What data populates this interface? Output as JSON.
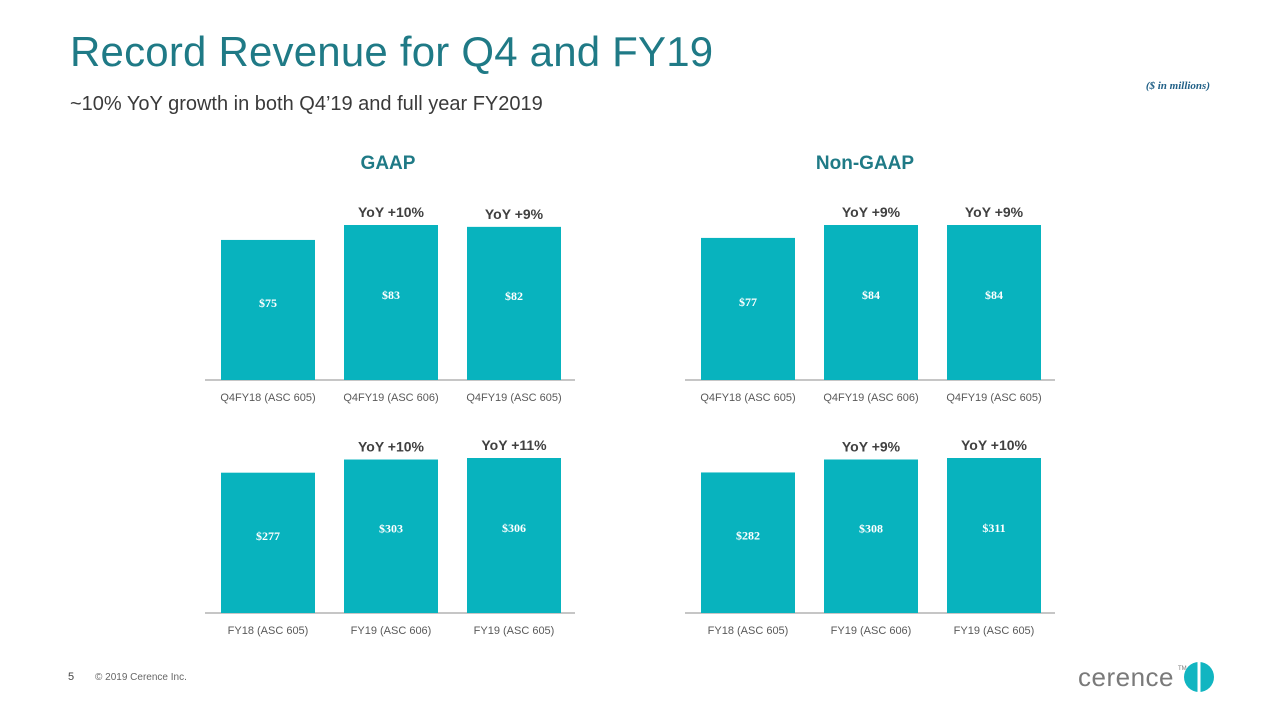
{
  "slide": {
    "title": "Record Revenue for Q4 and FY19",
    "subtitle": "~10% YoY growth in both Q4’19 and full year FY2019",
    "units_note": "($ in millions)",
    "gaap_title": "GAAP",
    "nongaap_title": "Non-GAAP",
    "page_number": "5",
    "copyright": "© 2019 Cerence Inc.",
    "logo_text": "cerence",
    "logo_tm": "TM"
  },
  "colors": {
    "bar": "#08b3be",
    "title": "#1f7a86",
    "axis": "#8c8c8c",
    "label": "#595959"
  },
  "chart_data": [
    {
      "type": "bar",
      "group": "GAAP",
      "categories": [
        "Q4FY18 (ASC 605)",
        "Q4FY19 (ASC 606)",
        "Q4FY19 (ASC 605)"
      ],
      "values": [
        75,
        83,
        82
      ],
      "data_labels": [
        "$75",
        "$83",
        "$82"
      ],
      "annotations": [
        "",
        "YoY +10%",
        "YoY +9%"
      ]
    },
    {
      "type": "bar",
      "group": "Non-GAAP",
      "categories": [
        "Q4FY18 (ASC 605)",
        "Q4FY19 (ASC 606)",
        "Q4FY19 (ASC 605)"
      ],
      "values": [
        77,
        84,
        84
      ],
      "data_labels": [
        "$77",
        "$84",
        "$84"
      ],
      "annotations": [
        "",
        "YoY +9%",
        "YoY +9%"
      ]
    },
    {
      "type": "bar",
      "group": "GAAP",
      "categories": [
        "FY18 (ASC 605)",
        "FY19 (ASC 606)",
        "FY19 (ASC 605)"
      ],
      "values": [
        277,
        303,
        306
      ],
      "data_labels": [
        "$277",
        "$303",
        "$306"
      ],
      "annotations": [
        "",
        "YoY +10%",
        "YoY +11%"
      ]
    },
    {
      "type": "bar",
      "group": "Non-GAAP",
      "categories": [
        "FY18 (ASC 605)",
        "FY19 (ASC 606)",
        "FY19 (ASC 605)"
      ],
      "values": [
        282,
        308,
        311
      ],
      "data_labels": [
        "$282",
        "$308",
        "$311"
      ],
      "annotations": [
        "",
        "YoY +9%",
        "YoY +10%"
      ]
    }
  ]
}
